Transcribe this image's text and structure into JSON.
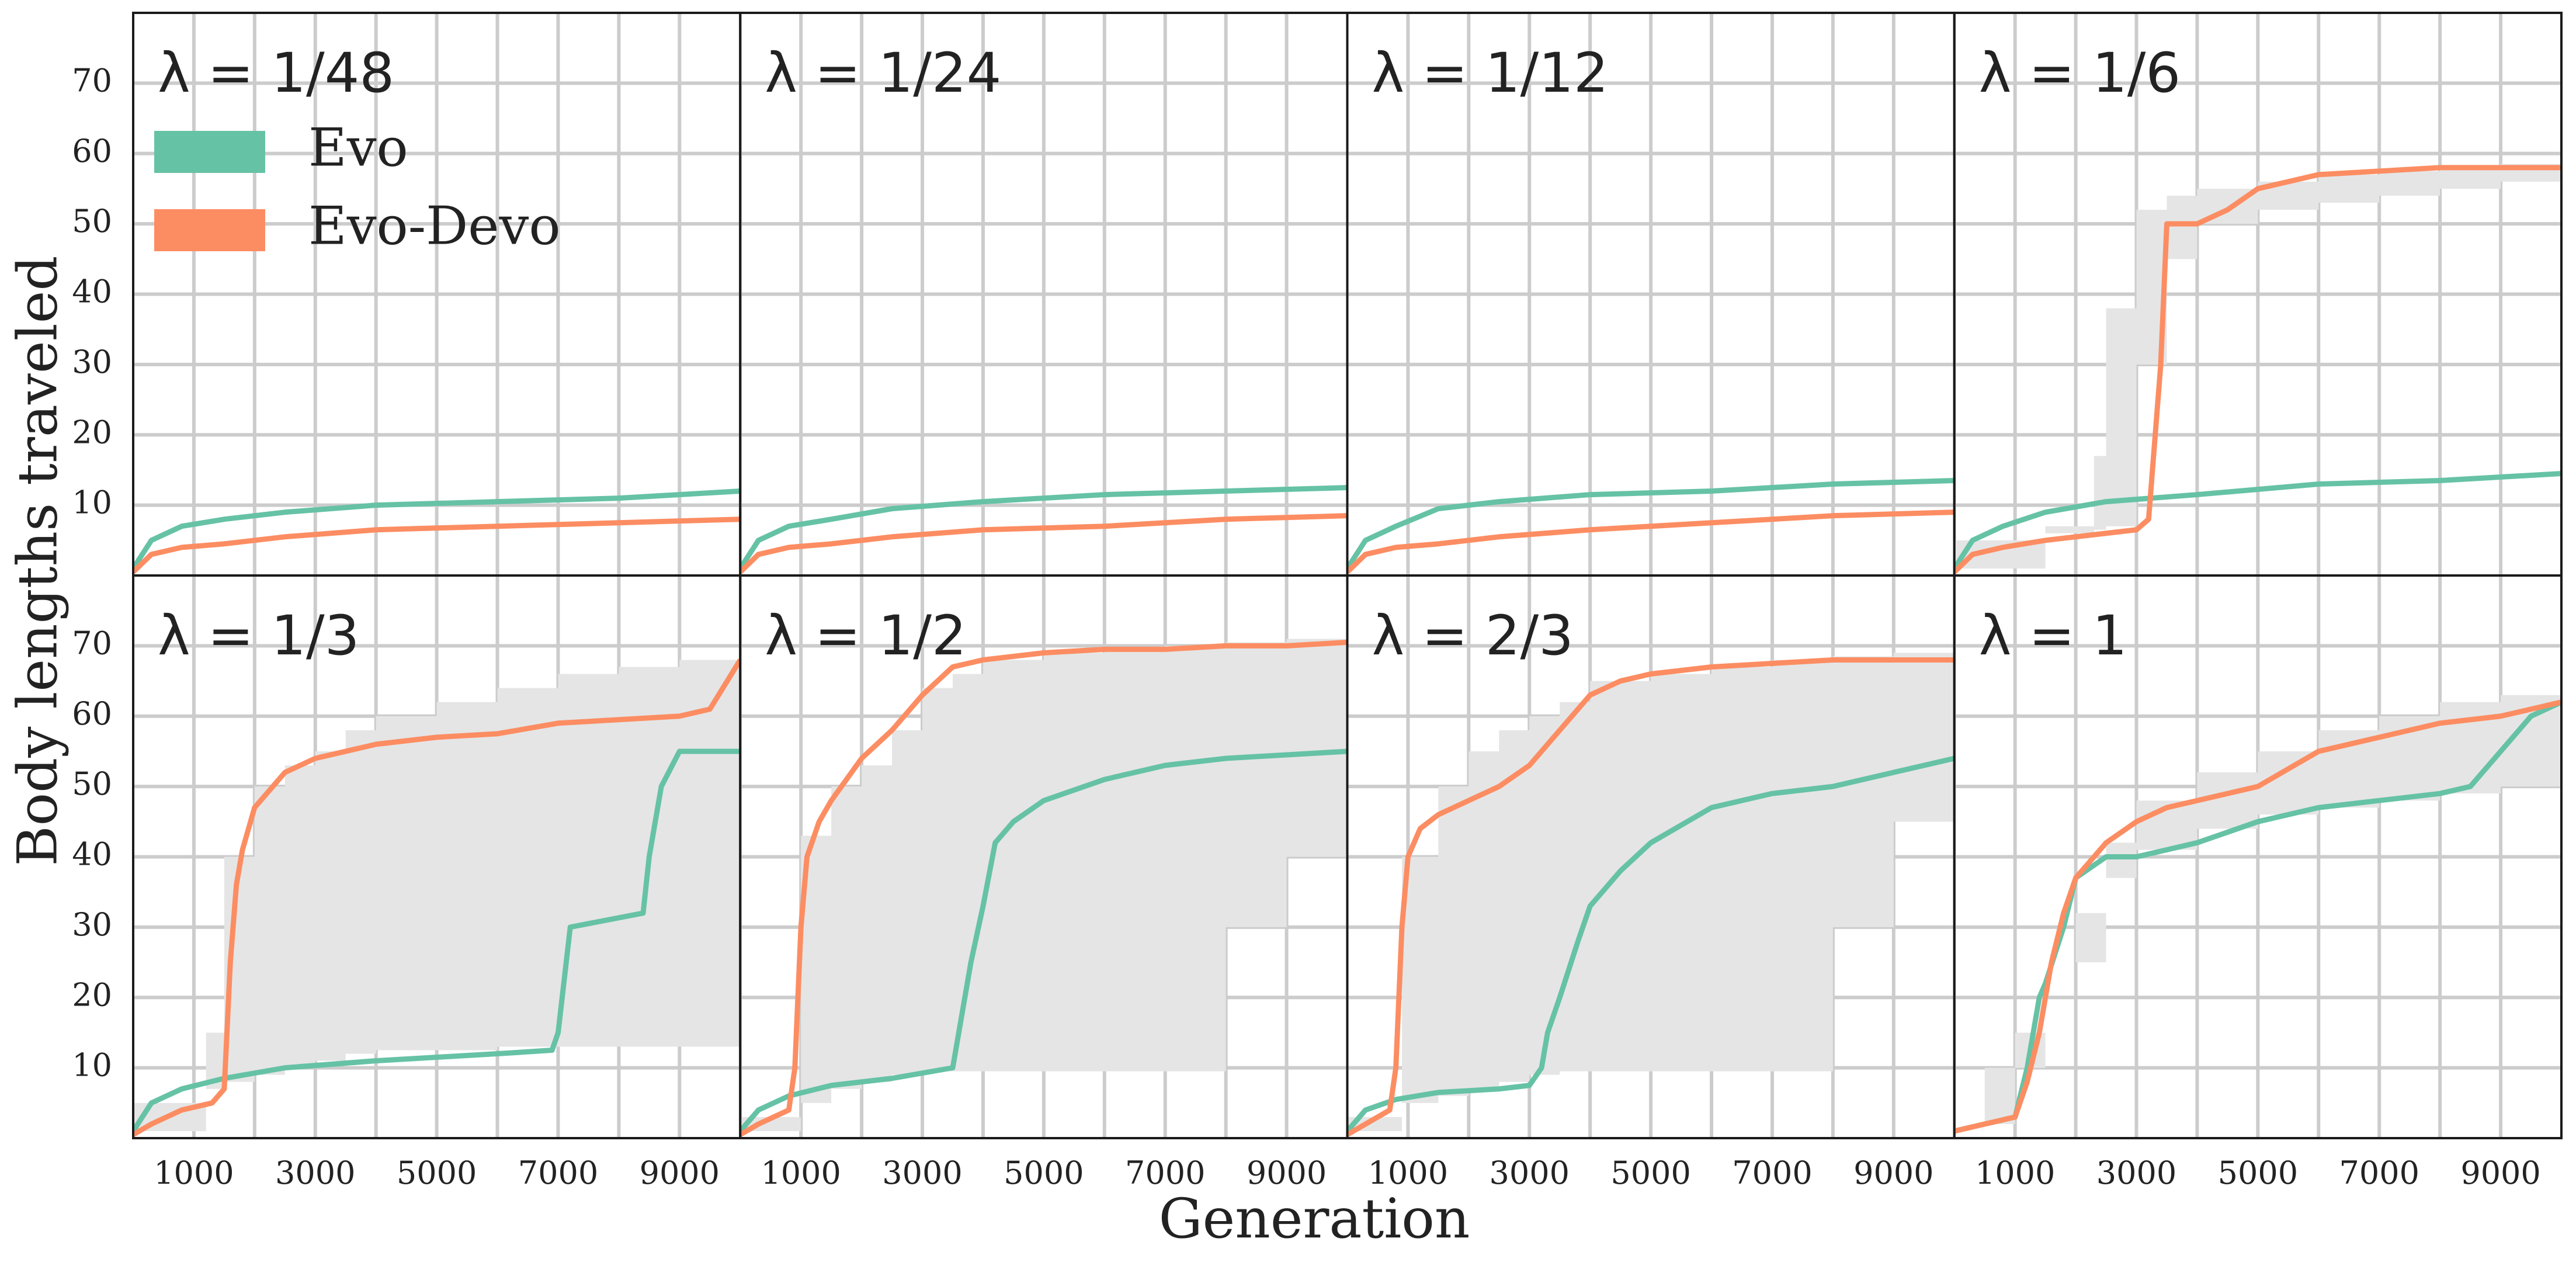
{
  "chart_data": {
    "type": "line",
    "xlabel": "Generation",
    "ylabel": "Body lengths traveled",
    "xlim": [
      0,
      10000
    ],
    "ylim": [
      0,
      80
    ],
    "xticks": [
      1000,
      3000,
      5000,
      7000,
      9000
    ],
    "yticks": [
      10,
      20,
      30,
      40,
      50,
      60,
      70
    ],
    "legend": {
      "placement": "top-left of first panel",
      "entries": [
        {
          "label": "Evo",
          "color": "#66c2a5"
        },
        {
          "label": "Evo-Devo",
          "color": "#fc8d62"
        }
      ]
    },
    "colors": {
      "evo": "#66c2a5",
      "evodevo": "#fc8d62",
      "band": "#e5e5e5",
      "grid": "#cccccc"
    },
    "panels": [
      {
        "title": "λ = 1/48",
        "series": [
          {
            "name": "Evo",
            "x": [
              0,
              300,
              800,
              1500,
              2500,
              4000,
              6000,
              8000,
              10000
            ],
            "y": [
              1,
              5,
              7,
              8,
              9,
              10,
              10.5,
              11,
              12
            ]
          },
          {
            "name": "Evo-Devo",
            "x": [
              0,
              300,
              800,
              1500,
              2500,
              4000,
              6000,
              8000,
              10000
            ],
            "y": [
              0.5,
              3,
              4,
              4.5,
              5.5,
              6.5,
              7,
              7.5,
              8
            ]
          }
        ],
        "bands": []
      },
      {
        "title": "λ = 1/24",
        "series": [
          {
            "name": "Evo",
            "x": [
              0,
              300,
              800,
              1500,
              2500,
              4000,
              6000,
              8000,
              10000
            ],
            "y": [
              1,
              5,
              7,
              8,
              9.5,
              10.5,
              11.5,
              12,
              12.5
            ]
          },
          {
            "name": "Evo-Devo",
            "x": [
              0,
              300,
              800,
              1500,
              2500,
              4000,
              6000,
              8000,
              10000
            ],
            "y": [
              0.5,
              3,
              4,
              4.5,
              5.5,
              6.5,
              7,
              8,
              8.5
            ]
          }
        ],
        "bands": []
      },
      {
        "title": "λ = 1/12",
        "series": [
          {
            "name": "Evo",
            "x": [
              0,
              300,
              800,
              1500,
              2500,
              4000,
              6000,
              8000,
              10000
            ],
            "y": [
              1,
              5,
              7,
              9.5,
              10.5,
              11.5,
              12,
              13,
              13.5
            ]
          },
          {
            "name": "Evo-Devo",
            "x": [
              0,
              300,
              800,
              1500,
              2500,
              4000,
              6000,
              8000,
              10000
            ],
            "y": [
              0.5,
              3,
              4,
              4.5,
              5.5,
              6.5,
              7.5,
              8.5,
              9
            ]
          }
        ],
        "bands": []
      },
      {
        "title": "λ = 1/6",
        "series": [
          {
            "name": "Evo",
            "x": [
              0,
              300,
              800,
              1500,
              2500,
              4000,
              6000,
              8000,
              10000
            ],
            "y": [
              1,
              5,
              7,
              9,
              10.5,
              11.5,
              13,
              13.5,
              14.5
            ]
          },
          {
            "name": "Evo-Devo",
            "x": [
              0,
              300,
              800,
              1500,
              2500,
              3000,
              3200,
              3400,
              3500,
              4000,
              4500,
              5000,
              6000,
              7000,
              8000,
              9000,
              10000
            ],
            "y": [
              0.5,
              3,
              4,
              5,
              6,
              6.5,
              8,
              30,
              50,
              50,
              52,
              55,
              57,
              57.5,
              58,
              58,
              58
            ]
          }
        ],
        "bands": [
          {
            "x": [
              0,
              1500,
              2300,
              2500,
              3000,
              3500,
              4000,
              5000,
              6000,
              7000,
              8000,
              9000,
              10000
            ],
            "low": [
              0,
              5,
              6,
              6.5,
              7,
              30,
              45,
              50,
              52,
              53,
              54,
              55,
              56
            ],
            "high": [
              1,
              7,
              17,
              38,
              52,
              54,
              55,
              56,
              57,
              57.5,
              58,
              58.5,
              59
            ]
          }
        ]
      },
      {
        "title": "λ = 1/3",
        "series": [
          {
            "name": "Evo",
            "x": [
              0,
              300,
              800,
              1500,
              2500,
              4000,
              6000,
              6900,
              7000,
              7200,
              8400,
              8500,
              8700,
              9000,
              10000
            ],
            "y": [
              1,
              5,
              7,
              8.5,
              10,
              11,
              12,
              12.5,
              15,
              30,
              32,
              40,
              50,
              55,
              55
            ]
          },
          {
            "name": "Evo-Devo",
            "x": [
              0,
              300,
              800,
              1300,
              1500,
              1600,
              1700,
              1800,
              2000,
              2500,
              3000,
              3500,
              4000,
              5000,
              6000,
              7000,
              8000,
              9000,
              9500,
              10000
            ],
            "y": [
              0.5,
              2,
              4,
              5,
              7,
              25,
              36,
              41,
              47,
              52,
              54,
              55,
              56,
              57,
              57.5,
              59,
              59.5,
              60,
              61,
              68
            ]
          }
        ],
        "bands": [
          {
            "x": [
              0,
              1200,
              1500,
              2000,
              2500,
              3000,
              3500,
              4000,
              5000,
              6000,
              7000,
              8000,
              9000,
              10000
            ],
            "low": [
              0,
              5,
              7,
              8,
              9,
              10,
              11,
              12,
              12.5,
              12.5,
              13,
              13,
              13,
              13
            ],
            "high": [
              1,
              15,
              40,
              50,
              53,
              55,
              58,
              60,
              62,
              64,
              66,
              67,
              68,
              69
            ]
          }
        ]
      },
      {
        "title": "λ = 1/2",
        "series": [
          {
            "name": "Evo",
            "x": [
              0,
              300,
              800,
              1500,
              2500,
              3500,
              3600,
              3800,
              4000,
              4200,
              4500,
              5000,
              6000,
              7000,
              8000,
              9000,
              10000
            ],
            "y": [
              1,
              4,
              6,
              7.5,
              8.5,
              10,
              15,
              25,
              33,
              42,
              45,
              48,
              51,
              53,
              54,
              54.5,
              55
            ]
          },
          {
            "name": "Evo-Devo",
            "x": [
              0,
              300,
              800,
              900,
              1000,
              1100,
              1300,
              1500,
              2000,
              2500,
              3000,
              3500,
              4000,
              5000,
              6000,
              7000,
              8000,
              9000,
              10000
            ],
            "y": [
              0.5,
              2,
              4,
              10,
              30,
              40,
              45,
              48,
              54,
              58,
              63,
              67,
              68,
              69,
              69.5,
              69.5,
              70,
              70,
              70.5
            ]
          }
        ],
        "bands": [
          {
            "x": [
              0,
              1000,
              1500,
              2000,
              2500,
              3000,
              3500,
              4000,
              5000,
              6000,
              7000,
              8000,
              9000,
              10000
            ],
            "low": [
              0,
              3,
              5,
              7,
              8,
              9,
              9.5,
              9.5,
              9.5,
              9.5,
              9.5,
              9.5,
              30,
              40
            ],
            "high": [
              1,
              43,
              50,
              53,
              58,
              64,
              66,
              68,
              69,
              69.5,
              70,
              70.5,
              71,
              71
            ]
          }
        ]
      },
      {
        "title": "λ = 2/3",
        "series": [
          {
            "name": "Evo",
            "x": [
              0,
              300,
              800,
              1500,
              2500,
              3000,
              3200,
              3300,
              3500,
              3800,
              4000,
              4500,
              5000,
              6000,
              7000,
              8000,
              9000,
              10000
            ],
            "y": [
              1,
              4,
              5.5,
              6.5,
              7,
              7.5,
              10,
              15,
              20,
              28,
              33,
              38,
              42,
              47,
              49,
              50,
              52,
              54
            ]
          },
          {
            "name": "Evo-Devo",
            "x": [
              0,
              300,
              700,
              800,
              900,
              1000,
              1200,
              1500,
              2000,
              2500,
              3000,
              3500,
              4000,
              4500,
              5000,
              6000,
              7000,
              8000,
              9000,
              10000
            ],
            "y": [
              0.5,
              2,
              4,
              10,
              30,
              40,
              44,
              46,
              48,
              50,
              53,
              58,
              63,
              65,
              66,
              67,
              67.5,
              68,
              68,
              68
            ]
          }
        ],
        "bands": [
          {
            "x": [
              0,
              900,
              1500,
              2000,
              2500,
              3000,
              3500,
              4000,
              5000,
              6000,
              7000,
              8000,
              9000,
              10000
            ],
            "low": [
              0,
              3,
              5,
              6,
              7,
              8,
              9,
              9.5,
              9.5,
              9.5,
              9.5,
              9.5,
              30,
              45
            ],
            "high": [
              1,
              40,
              50,
              55,
              58,
              60,
              62,
              65,
              66,
              67,
              68,
              68.5,
              69,
              69
            ]
          }
        ]
      },
      {
        "title": "λ = 1",
        "series": [
          {
            "name": "Evo",
            "x": [
              0,
              500,
              1000,
              1200,
              1400,
              1500,
              1800,
              2000,
              2500,
              3000,
              4000,
              5000,
              6000,
              7000,
              8000,
              8500,
              9000,
              9500,
              10000
            ],
            "y": [
              1,
              2,
              3,
              10,
              20,
              22,
              30,
              37,
              40,
              40,
              42,
              45,
              47,
              48,
              49,
              50,
              55,
              60,
              62
            ]
          },
          {
            "name": "Evo-Devo",
            "x": [
              0,
              500,
              1000,
              1200,
              1400,
              1600,
              1800,
              2000,
              2500,
              3000,
              3500,
              4000,
              5000,
              6000,
              7000,
              8000,
              9000,
              10000
            ],
            "y": [
              1,
              2,
              3,
              8,
              15,
              25,
              32,
              37,
              42,
              45,
              47,
              48,
              50,
              55,
              57,
              59,
              60,
              62
            ]
          }
        ],
        "bands": [
          {
            "x": [
              0,
              500,
              1000,
              1500,
              2000,
              2500,
              3000,
              4000,
              5000,
              6000,
              7000,
              8000,
              9000,
              10000
            ],
            "low": [
              0,
              1,
              2,
              10,
              20,
              25,
              37,
              41,
              44,
              46,
              47,
              48,
              49,
              50
            ],
            "high": [
              1,
              10,
              15,
              20,
              32,
              42,
              48,
              52,
              55,
              58,
              60,
              62,
              63,
              64
            ]
          }
        ]
      }
    ]
  }
}
